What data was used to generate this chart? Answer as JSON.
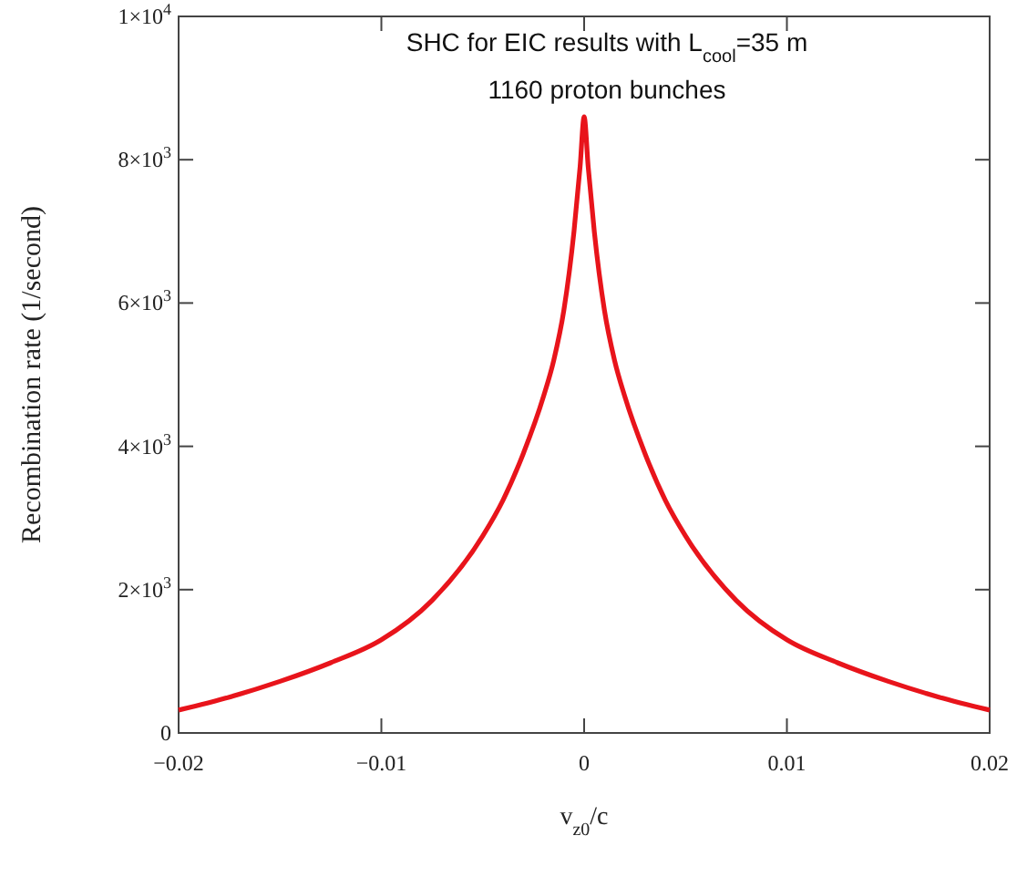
{
  "chart_data": {
    "type": "line",
    "title": "SHC for EIC results with L$_{cool}$=35 m",
    "subtitle": "1160 proton bunches",
    "xlabel": "v$_{z0}$/c",
    "ylabel": "Recombination rate (1/second)",
    "series": [
      {
        "color": "#e8141b",
        "x": [
          -0.02,
          -0.0175,
          -0.015,
          -0.0125,
          -0.01,
          -0.0075,
          -0.005,
          -0.004,
          -0.003,
          -0.002,
          -0.0015,
          -0.001,
          -0.0005,
          -0.0002,
          0,
          0.0002,
          0.0005,
          0.001,
          0.0015,
          0.002,
          0.003,
          0.004,
          0.005,
          0.0075,
          0.01,
          0.0125,
          0.015,
          0.0175,
          0.02
        ],
        "values": [
          320,
          500,
          720,
          980,
          1300,
          1850,
          2750,
          3250,
          3900,
          4700,
          5200,
          5900,
          7000,
          7900,
          8600,
          7900,
          7000,
          5900,
          5200,
          4700,
          3900,
          3250,
          2750,
          1850,
          1300,
          980,
          720,
          500,
          320
        ]
      }
    ],
    "xlim": [
      -0.02,
      0.02
    ],
    "xticks": [
      {
        "value": -0.02,
        "label": "−0.02"
      },
      {
        "value": -0.01,
        "label": "−0.01"
      },
      0,
      0.01,
      0.02
    ],
    "ylim": [
      0,
      10000
    ],
    "yticks": [
      0,
      {
        "value": 2000,
        "label": "2×10$^{3}$"
      },
      {
        "value": 4000,
        "label": "4×10$^{3}$"
      },
      {
        "value": 6000,
        "label": "6×10$^{3}$"
      },
      {
        "value": 8000,
        "label": "8×10$^{3}$"
      },
      {
        "value": 10000,
        "label": "1×10$^{4}$"
      }
    ],
    "marker": "none",
    "line_style": "solid"
  }
}
